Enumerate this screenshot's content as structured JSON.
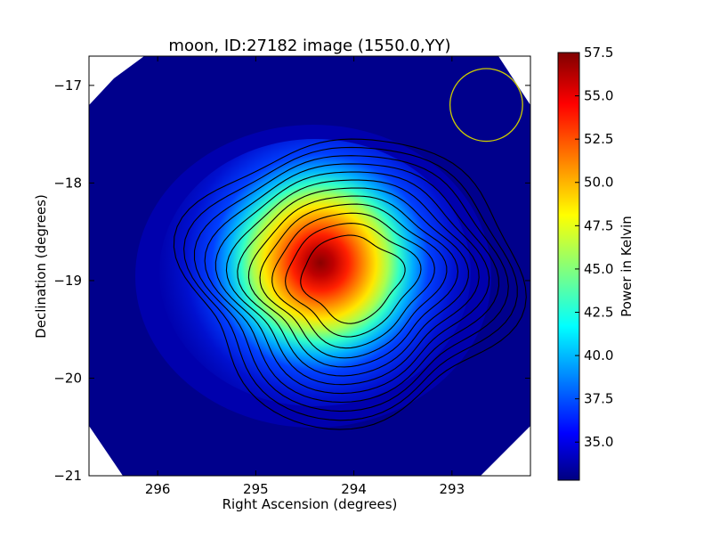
{
  "chart_data": {
    "type": "heatmap",
    "title": "moon, ID:27182 image (1550.0,YY)",
    "xlabel": "Right Ascension (degrees)",
    "ylabel": "Declination (degrees)",
    "xlim": [
      296.7,
      292.2
    ],
    "ylim": [
      -21.0,
      -16.7
    ],
    "x_ticks": [
      296,
      295,
      294,
      293
    ],
    "x_tick_labels": [
      "296",
      "295",
      "294",
      "293"
    ],
    "y_ticks": [
      -17,
      -18,
      -19,
      -20,
      -21
    ],
    "y_tick_labels": [
      "−17",
      "−18",
      "−19",
      "−20",
      "−21"
    ],
    "colorbar": {
      "label": "Power in Kelvin",
      "min": 32.8,
      "max": 57.5,
      "ticks": [
        35.0,
        37.5,
        40.0,
        42.5,
        45.0,
        47.5,
        50.0,
        52.5,
        55.0,
        57.5
      ],
      "tick_labels": [
        "35.0",
        "37.5",
        "40.0",
        "42.5",
        "45.0",
        "47.5",
        "50.0",
        "52.5",
        "55.0",
        "57.5"
      ],
      "colormap": "jet"
    },
    "peak": {
      "ra": 294.1,
      "dec": -18.95,
      "value": 57.5
    },
    "background_value": 33.0,
    "contour_levels": [
      34.6,
      36.9,
      39.1,
      41.2,
      43.2,
      45.1,
      46.9,
      48.6,
      50.2,
      51.8,
      53.4,
      55.0
    ],
    "beam_circle": {
      "ra": 292.65,
      "dec": -17.2,
      "radius_deg": 0.37,
      "color": "#cccc00"
    },
    "grid": false
  }
}
